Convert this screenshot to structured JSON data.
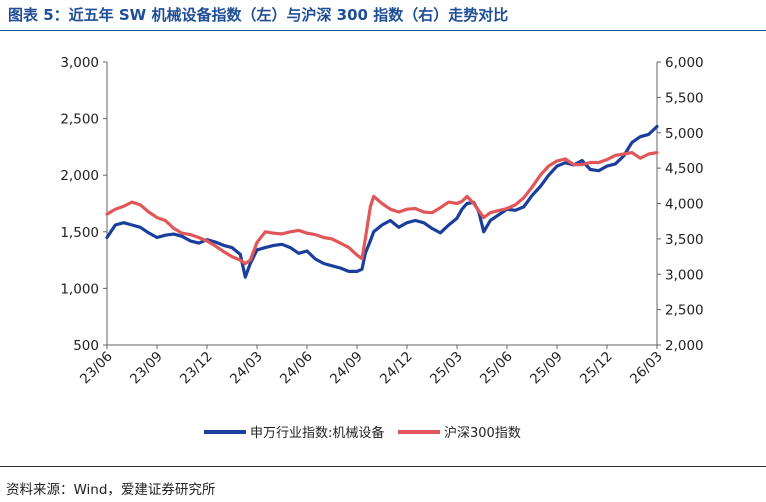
{
  "figure": {
    "title": "图表 5：近五年 SW 机械设备指数（左）与沪深 300 指数（右）走势对比",
    "source": "资料来源：Wind，爱建证券研究所"
  },
  "chart_data": {
    "type": "line",
    "title": "近五年 SW 机械设备指数（左）与沪深 300 指数（右）走势对比",
    "x_tick_labels": [
      "23/06",
      "23/09",
      "23/12",
      "24/03",
      "24/06",
      "24/09",
      "24/12",
      "25/03",
      "25/06",
      "25/09",
      "25/12",
      "26/03"
    ],
    "x_tick_positions": [
      0,
      3,
      6,
      9,
      12,
      15,
      18,
      21,
      24,
      27,
      30,
      33
    ],
    "x_range": [
      0,
      33
    ],
    "y_left": {
      "range": [
        500,
        3000
      ],
      "ticks": [
        500,
        1000,
        1500,
        2000,
        2500,
        3000
      ],
      "tick_labels": [
        "500",
        "1,000",
        "1,500",
        "2,000",
        "2,500",
        "3,000"
      ]
    },
    "y_right": {
      "range": [
        2000,
        6000
      ],
      "ticks": [
        2000,
        2500,
        3000,
        3500,
        4000,
        4500,
        5000,
        5500,
        6000
      ],
      "tick_labels": [
        "2,000",
        "2,500",
        "3,000",
        "3,500",
        "4,000",
        "4,500",
        "5,000",
        "5,500",
        "6,000"
      ]
    },
    "series": [
      {
        "name": "申万行业指数:机械设备",
        "axis": "left",
        "color": "#1a3e9b",
        "x": [
          0,
          0.5,
          1,
          1.5,
          2,
          2.5,
          3,
          3.5,
          4,
          4.5,
          5,
          5.5,
          6,
          6.5,
          7,
          7.5,
          8,
          8.3,
          8.6,
          9,
          9.5,
          10,
          10.5,
          11,
          11.5,
          12,
          12.5,
          13,
          13.5,
          14,
          14.5,
          15,
          15.3,
          15.5,
          15.8,
          16,
          16.5,
          17,
          17.5,
          18,
          18.5,
          19,
          19.5,
          20,
          20.5,
          21,
          21.3,
          21.6,
          22,
          22.3,
          22.6,
          23,
          23.5,
          24,
          24.5,
          25,
          25.5,
          26,
          26.5,
          27,
          27.5,
          28,
          28.5,
          29,
          29.5,
          30,
          30.5,
          31,
          31.5,
          32,
          32.5,
          33
        ],
        "values": [
          1450,
          1560,
          1580,
          1560,
          1540,
          1490,
          1450,
          1470,
          1480,
          1460,
          1420,
          1400,
          1430,
          1410,
          1380,
          1360,
          1300,
          1100,
          1220,
          1340,
          1360,
          1380,
          1390,
          1360,
          1310,
          1330,
          1260,
          1220,
          1200,
          1180,
          1150,
          1150,
          1170,
          1310,
          1420,
          1500,
          1560,
          1600,
          1540,
          1580,
          1600,
          1580,
          1530,
          1490,
          1560,
          1620,
          1700,
          1750,
          1760,
          1680,
          1500,
          1600,
          1650,
          1700,
          1690,
          1720,
          1820,
          1900,
          2000,
          2080,
          2110,
          2090,
          2130,
          2050,
          2040,
          2080,
          2100,
          2170,
          2290,
          2340,
          2360,
          2430
        ]
      },
      {
        "name": "沪深300指数",
        "axis": "right",
        "color": "#e15759",
        "x": [
          0,
          0.5,
          1,
          1.5,
          2,
          2.5,
          3,
          3.5,
          4,
          4.5,
          5,
          5.5,
          6,
          6.5,
          7,
          7.5,
          8,
          8.3,
          8.6,
          9,
          9.5,
          10,
          10.5,
          11,
          11.5,
          12,
          12.5,
          13,
          13.5,
          14,
          14.5,
          15,
          15.3,
          15.5,
          15.8,
          16,
          16.5,
          17,
          17.5,
          18,
          18.5,
          19,
          19.5,
          20,
          20.5,
          21,
          21.3,
          21.6,
          22,
          22.3,
          22.6,
          23,
          23.5,
          24,
          24.5,
          25,
          25.5,
          26,
          26.5,
          27,
          27.5,
          28,
          28.5,
          29,
          29.5,
          30,
          30.5,
          31,
          31.5,
          32,
          32.5,
          33
        ],
        "values": [
          3850,
          3920,
          3960,
          4020,
          3980,
          3880,
          3800,
          3760,
          3650,
          3580,
          3560,
          3520,
          3470,
          3400,
          3320,
          3250,
          3200,
          3150,
          3200,
          3450,
          3600,
          3580,
          3570,
          3600,
          3620,
          3580,
          3560,
          3520,
          3500,
          3440,
          3380,
          3270,
          3220,
          3500,
          3950,
          4100,
          4000,
          3920,
          3880,
          3920,
          3930,
          3880,
          3870,
          3940,
          4020,
          4000,
          4030,
          4100,
          4000,
          3900,
          3800,
          3870,
          3900,
          3930,
          3980,
          4080,
          4230,
          4400,
          4530,
          4600,
          4630,
          4550,
          4550,
          4580,
          4580,
          4620,
          4680,
          4700,
          4720,
          4640,
          4700,
          4720
        ]
      }
    ],
    "legend": {
      "position": "bottom-center",
      "entries": [
        "申万行业指数:机械设备",
        "沪深300指数"
      ]
    }
  }
}
